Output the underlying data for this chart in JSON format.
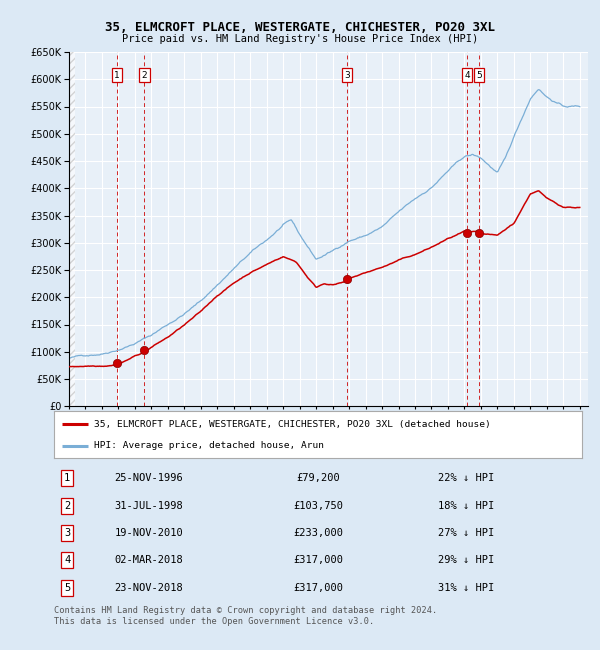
{
  "title": "35, ELMCROFT PLACE, WESTERGATE, CHICHESTER, PO20 3XL",
  "subtitle": "Price paid vs. HM Land Registry's House Price Index (HPI)",
  "red_label": "35, ELMCROFT PLACE, WESTERGATE, CHICHESTER, PO20 3XL (detached house)",
  "blue_label": "HPI: Average price, detached house, Arun",
  "footer1": "Contains HM Land Registry data © Crown copyright and database right 2024.",
  "footer2": "This data is licensed under the Open Government Licence v3.0.",
  "sales": [
    {
      "num": 1,
      "date_label": "25-NOV-1996",
      "year": 1996.9,
      "price": 79200,
      "pct": "22%",
      "dir": "↓"
    },
    {
      "num": 2,
      "date_label": "31-JUL-1998",
      "year": 1998.58,
      "price": 103750,
      "pct": "18%",
      "dir": "↓"
    },
    {
      "num": 3,
      "date_label": "19-NOV-2010",
      "year": 2010.89,
      "price": 233000,
      "pct": "27%",
      "dir": "↓"
    },
    {
      "num": 4,
      "date_label": "02-MAR-2018",
      "year": 2018.17,
      "price": 317000,
      "pct": "29%",
      "dir": "↓"
    },
    {
      "num": 5,
      "date_label": "23-NOV-2018",
      "year": 2018.9,
      "price": 317000,
      "pct": "31%",
      "dir": "↓"
    }
  ],
  "ylim": [
    0,
    650000
  ],
  "xlim_start": 1994.0,
  "xlim_end": 2025.5,
  "bg_color": "#dce9f5",
  "plot_bg": "#e8f0f8",
  "grid_color": "#ffffff",
  "red_color": "#cc0000",
  "blue_color": "#7aaed6",
  "dashed_color": "#cc0000",
  "hpi_key_years": [
    1994,
    1995,
    1996,
    1997,
    1998,
    1999,
    2000,
    2001,
    2002,
    2003,
    2004,
    2005,
    2006,
    2007,
    2007.5,
    2008,
    2009,
    2010,
    2011,
    2012,
    2013,
    2014,
    2015,
    2016,
    2017,
    2018,
    2018.5,
    2019,
    2020,
    2020.5,
    2021,
    2022,
    2022.5,
    2023,
    2024,
    2025
  ],
  "hpi_key_vals": [
    88000,
    93000,
    98000,
    108000,
    120000,
    135000,
    155000,
    175000,
    198000,
    228000,
    258000,
    285000,
    308000,
    335000,
    342000,
    315000,
    270000,
    285000,
    305000,
    315000,
    330000,
    355000,
    378000,
    400000,
    430000,
    455000,
    458000,
    452000,
    425000,
    450000,
    488000,
    560000,
    580000,
    565000,
    548000,
    548000
  ],
  "red_key_years": [
    1994,
    1995,
    1996,
    1996.9,
    1997.5,
    1998.58,
    1999,
    2000,
    2001,
    2002,
    2003,
    2004,
    2005,
    2006,
    2007,
    2007.8,
    2008.5,
    2009,
    2009.5,
    2010,
    2010.89,
    2011,
    2012,
    2013,
    2014,
    2015,
    2016,
    2017,
    2018,
    2018.17,
    2018.9,
    2019,
    2020,
    2021,
    2022,
    2022.5,
    2023,
    2024,
    2025
  ],
  "red_key_vals": [
    72000,
    74000,
    76000,
    79200,
    88000,
    103750,
    112000,
    130000,
    152000,
    175000,
    205000,
    228000,
    248000,
    263000,
    278000,
    268000,
    240000,
    222000,
    230000,
    228000,
    233000,
    238000,
    248000,
    258000,
    270000,
    280000,
    293000,
    308000,
    320000,
    317000,
    317000,
    313000,
    308000,
    330000,
    385000,
    390000,
    375000,
    360000,
    360000
  ]
}
